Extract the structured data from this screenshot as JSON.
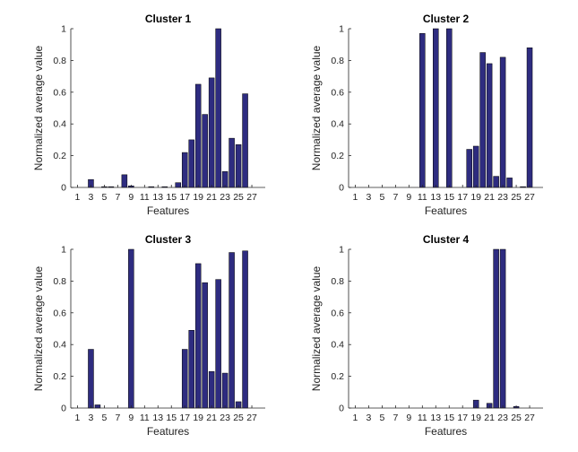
{
  "chart_data": [
    {
      "type": "bar",
      "title": "Cluster 1",
      "xlabel": "Features",
      "ylabel": "Normalized average value",
      "ylim": [
        0,
        1
      ],
      "xlim": [
        0,
        29
      ],
      "categories": [
        1,
        2,
        3,
        4,
        5,
        6,
        7,
        8,
        9,
        10,
        11,
        12,
        13,
        14,
        15,
        16,
        17,
        18,
        19,
        20,
        21,
        22,
        23,
        24,
        25,
        26,
        27,
        28
      ],
      "x_tick_labels": [
        "1",
        "3",
        "5",
        "7",
        "9",
        "11",
        "13",
        "15",
        "17",
        "19",
        "21",
        "23",
        "25",
        "27"
      ],
      "y_tick_labels": [
        "0",
        "0.2",
        "0.4",
        "0.6",
        "0.8",
        "1"
      ],
      "values": [
        0,
        0,
        0.05,
        0,
        0.005,
        0.005,
        0,
        0.08,
        0.01,
        0,
        0,
        0.005,
        0,
        0.005,
        0,
        0.03,
        0.22,
        0.3,
        0.65,
        0.46,
        0.69,
        1.0,
        0.1,
        0.31,
        0.27,
        0.59,
        0,
        0
      ]
    },
    {
      "type": "bar",
      "title": "Cluster 2",
      "xlabel": "Features",
      "ylabel": "Normalized average value",
      "ylim": [
        0,
        1
      ],
      "xlim": [
        0,
        29
      ],
      "categories": [
        1,
        2,
        3,
        4,
        5,
        6,
        7,
        8,
        9,
        10,
        11,
        12,
        13,
        14,
        15,
        16,
        17,
        18,
        19,
        20,
        21,
        22,
        23,
        24,
        25,
        26,
        27,
        28
      ],
      "x_tick_labels": [
        "1",
        "3",
        "5",
        "7",
        "9",
        "11",
        "13",
        "15",
        "17",
        "19",
        "21",
        "23",
        "25",
        "27"
      ],
      "y_tick_labels": [
        "0",
        "0.2",
        "0.4",
        "0.6",
        "0.8",
        "1"
      ],
      "values": [
        0,
        0,
        0,
        0,
        0,
        0,
        0,
        0,
        0,
        0,
        0.97,
        0,
        1.0,
        0,
        1.0,
        0,
        0,
        0.24,
        0.26,
        0.85,
        0.78,
        0.07,
        0.82,
        0.06,
        0,
        0.005,
        0.88,
        0
      ]
    },
    {
      "type": "bar",
      "title": "Cluster 3",
      "xlabel": "Features",
      "ylabel": "Normalized average value",
      "ylim": [
        0,
        1
      ],
      "xlim": [
        0,
        29
      ],
      "categories": [
        1,
        2,
        3,
        4,
        5,
        6,
        7,
        8,
        9,
        10,
        11,
        12,
        13,
        14,
        15,
        16,
        17,
        18,
        19,
        20,
        21,
        22,
        23,
        24,
        25,
        26,
        27,
        28
      ],
      "x_tick_labels": [
        "1",
        "3",
        "5",
        "7",
        "9",
        "11",
        "13",
        "15",
        "17",
        "19",
        "21",
        "23",
        "25",
        "27"
      ],
      "y_tick_labels": [
        "0",
        "0.2",
        "0.4",
        "0.6",
        "0.8",
        "1"
      ],
      "values": [
        0,
        0,
        0.37,
        0.02,
        0,
        0,
        0,
        0,
        1.0,
        0,
        0,
        0,
        0,
        0,
        0,
        0,
        0.37,
        0.49,
        0.91,
        0.79,
        0.23,
        0.81,
        0.22,
        0.98,
        0.04,
        0.99,
        0,
        0
      ]
    },
    {
      "type": "bar",
      "title": "Cluster 4",
      "xlabel": "Features",
      "ylabel": "Normalized average value",
      "ylim": [
        0,
        1
      ],
      "xlim": [
        0,
        29
      ],
      "categories": [
        1,
        2,
        3,
        4,
        5,
        6,
        7,
        8,
        9,
        10,
        11,
        12,
        13,
        14,
        15,
        16,
        17,
        18,
        19,
        20,
        21,
        22,
        23,
        24,
        25,
        26,
        27,
        28
      ],
      "x_tick_labels": [
        "1",
        "3",
        "5",
        "7",
        "9",
        "11",
        "13",
        "15",
        "17",
        "19",
        "21",
        "23",
        "25",
        "27"
      ],
      "y_tick_labels": [
        "0",
        "0.2",
        "0.4",
        "0.6",
        "0.8",
        "1"
      ],
      "values": [
        0,
        0,
        0,
        0,
        0,
        0,
        0,
        0,
        0,
        0,
        0,
        0,
        0,
        0,
        0,
        0,
        0,
        0,
        0.05,
        0,
        0.03,
        1.0,
        1.0,
        0,
        0.01,
        0,
        0,
        0
      ]
    }
  ],
  "colors": {
    "bar_fill": "#2e2c80",
    "bar_edge": "#000000",
    "axis": "#262626",
    "background": "#ffffff"
  }
}
